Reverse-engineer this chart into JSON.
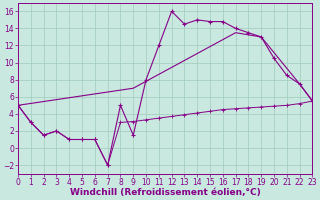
{
  "background_color": "#c8e8e0",
  "line_color": "#880088",
  "grid_color": "#a0ccbc",
  "xlabel": "Windchill (Refroidissement éolien,°C)",
  "xlabel_fontsize": 6.5,
  "tick_fontsize": 5.5,
  "xlim": [
    0,
    23
  ],
  "ylim": [
    -3,
    17
  ],
  "yticks": [
    -2,
    0,
    2,
    4,
    6,
    8,
    10,
    12,
    14,
    16
  ],
  "xticks": [
    0,
    1,
    2,
    3,
    4,
    5,
    6,
    7,
    8,
    9,
    10,
    11,
    12,
    13,
    14,
    15,
    16,
    17,
    18,
    19,
    20,
    21,
    22,
    23
  ],
  "zigzag_x": [
    0,
    1,
    2,
    3,
    4,
    5,
    6,
    7,
    8,
    9,
    10,
    11,
    12,
    13,
    14,
    15,
    16,
    17,
    18,
    19,
    20,
    21,
    22,
    23
  ],
  "zigzag_y": [
    5,
    3,
    1.5,
    2,
    1,
    1,
    1,
    -2,
    5,
    1.5,
    8,
    12,
    16,
    14.5,
    15,
    14.8,
    14.8,
    14,
    13.5,
    13,
    10.5,
    8.5,
    7.5,
    5.5
  ],
  "upper_diag_x": [
    0,
    9,
    17,
    19,
    22,
    23
  ],
  "upper_diag_y": [
    5,
    7,
    13.5,
    13,
    7.5,
    5.5
  ],
  "lower_flat_x": [
    0,
    1,
    2,
    3,
    4,
    5,
    6,
    7,
    8,
    9,
    10,
    11,
    12,
    13,
    14,
    15,
    16,
    17,
    18,
    19,
    20,
    21,
    22,
    23
  ],
  "lower_flat_y": [
    5,
    3,
    1.5,
    2,
    1,
    1,
    1,
    -2,
    3.0,
    3.1,
    3.3,
    3.5,
    3.7,
    3.9,
    4.1,
    4.3,
    4.5,
    4.6,
    4.7,
    4.8,
    4.9,
    5.0,
    5.2,
    5.5
  ]
}
